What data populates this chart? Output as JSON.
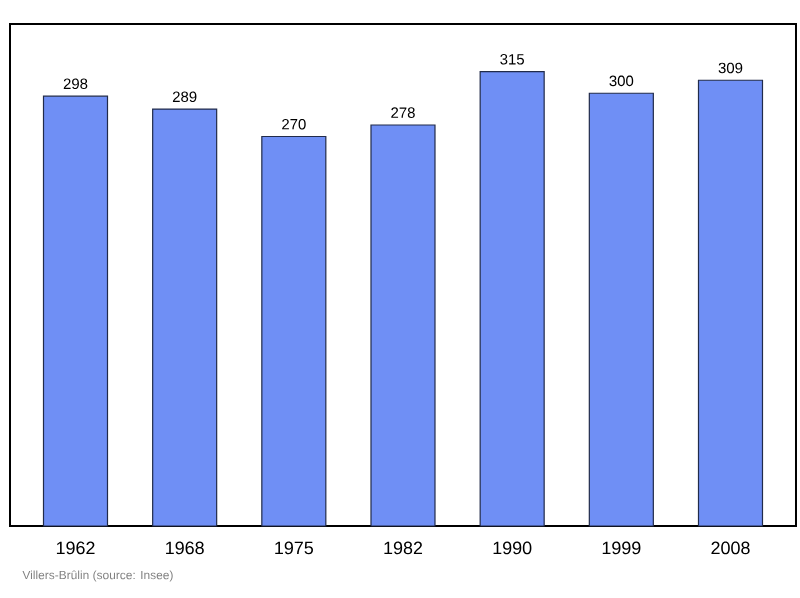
{
  "chart_data": {
    "type": "bar",
    "categories": [
      "1962",
      "1968",
      "1975",
      "1982",
      "1990",
      "1999",
      "2008"
    ],
    "values": [
      298,
      289,
      270,
      278,
      315,
      300,
      309
    ],
    "color": "#6f8ff5",
    "ylim": [
      0,
      348
    ],
    "tick_labels": "x",
    "data_labels": true,
    "annotations": [
      "Villers-Brûlin   (source: Insee)"
    ]
  }
}
